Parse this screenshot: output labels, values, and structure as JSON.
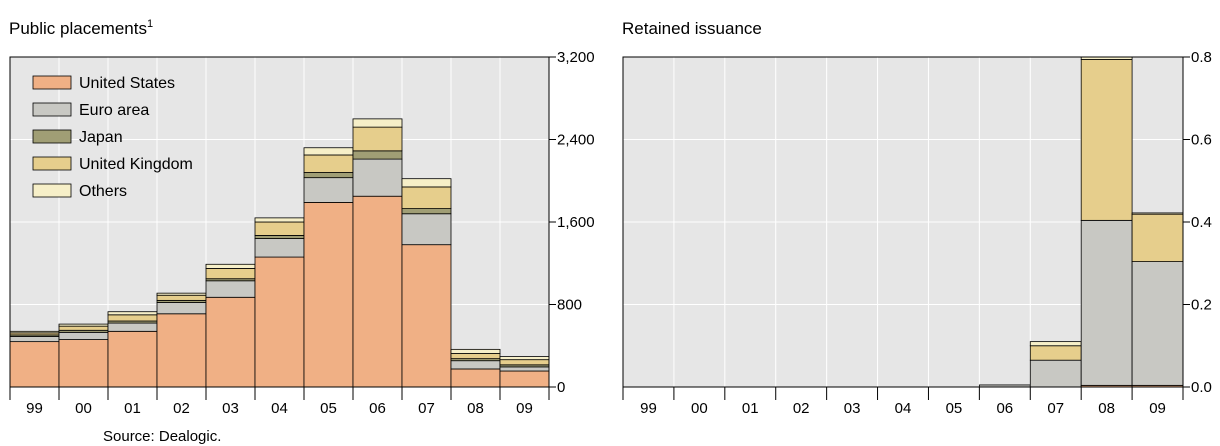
{
  "colors": {
    "plot_bg": "#e6e6e6",
    "gridline": "#ffffff",
    "United States": "#f0b085",
    "Euro area": "#c8c8c3",
    "Japan": "#a09e75",
    "United Kingdom": "#e6ce8c",
    "Others": "#f6efc8"
  },
  "source": "Source: Dealogic.",
  "chart_data": [
    {
      "type": "bar",
      "stacked": true,
      "title": "Public placements",
      "title_superscript": "1",
      "categories": [
        "99",
        "00",
        "01",
        "02",
        "03",
        "04",
        "05",
        "06",
        "07",
        "08",
        "09"
      ],
      "y_axis_side": "right",
      "ylim": [
        0,
        3200
      ],
      "yticks": [
        0,
        800,
        1600,
        2400,
        3200
      ],
      "ytick_labels": [
        "0",
        "800",
        "1,600",
        "2,400",
        "3,200"
      ],
      "grid": true,
      "legend": "top-left",
      "series": [
        {
          "name": "United States",
          "values": [
            440,
            460,
            540,
            710,
            870,
            1260,
            1790,
            1850,
            1380,
            175,
            155
          ]
        },
        {
          "name": "Euro area",
          "values": [
            50,
            70,
            80,
            110,
            160,
            180,
            240,
            360,
            300,
            80,
            40
          ]
        },
        {
          "name": "Japan",
          "values": [
            15,
            20,
            20,
            20,
            20,
            30,
            50,
            80,
            50,
            20,
            20
          ]
        },
        {
          "name": "United Kingdom",
          "values": [
            20,
            40,
            60,
            50,
            100,
            130,
            170,
            230,
            210,
            50,
            50
          ]
        },
        {
          "name": "Others",
          "values": [
            15,
            20,
            30,
            20,
            40,
            40,
            70,
            80,
            80,
            40,
            30
          ]
        }
      ]
    },
    {
      "type": "bar",
      "stacked": true,
      "title": "Retained issuance",
      "categories": [
        "99",
        "00",
        "01",
        "02",
        "03",
        "04",
        "05",
        "06",
        "07",
        "08",
        "09"
      ],
      "y_axis_side": "right",
      "ylim": [
        0,
        0.8
      ],
      "yticks": [
        0,
        0.2,
        0.4,
        0.6,
        0.8
      ],
      "ytick_labels": [
        "0.0",
        "0.2",
        "0.4",
        "0.6",
        "0.8"
      ],
      "grid": true,
      "series": [
        {
          "name": "United States",
          "values": [
            0,
            0,
            0,
            0,
            0,
            0,
            0,
            0,
            0,
            0.004,
            0.004
          ]
        },
        {
          "name": "Euro area",
          "values": [
            0,
            0,
            0,
            0,
            0,
            0,
            0,
            0.005,
            0.065,
            0.4,
            0.3
          ]
        },
        {
          "name": "Japan",
          "values": [
            0,
            0,
            0,
            0,
            0,
            0,
            0,
            0,
            0,
            0,
            0
          ]
        },
        {
          "name": "United Kingdom",
          "values": [
            0,
            0,
            0,
            0,
            0,
            0,
            0,
            0,
            0.035,
            0.39,
            0.115
          ]
        },
        {
          "name": "Others",
          "values": [
            0,
            0,
            0,
            0,
            0,
            0,
            0,
            0,
            0.01,
            0.006,
            0.003
          ]
        }
      ]
    }
  ]
}
